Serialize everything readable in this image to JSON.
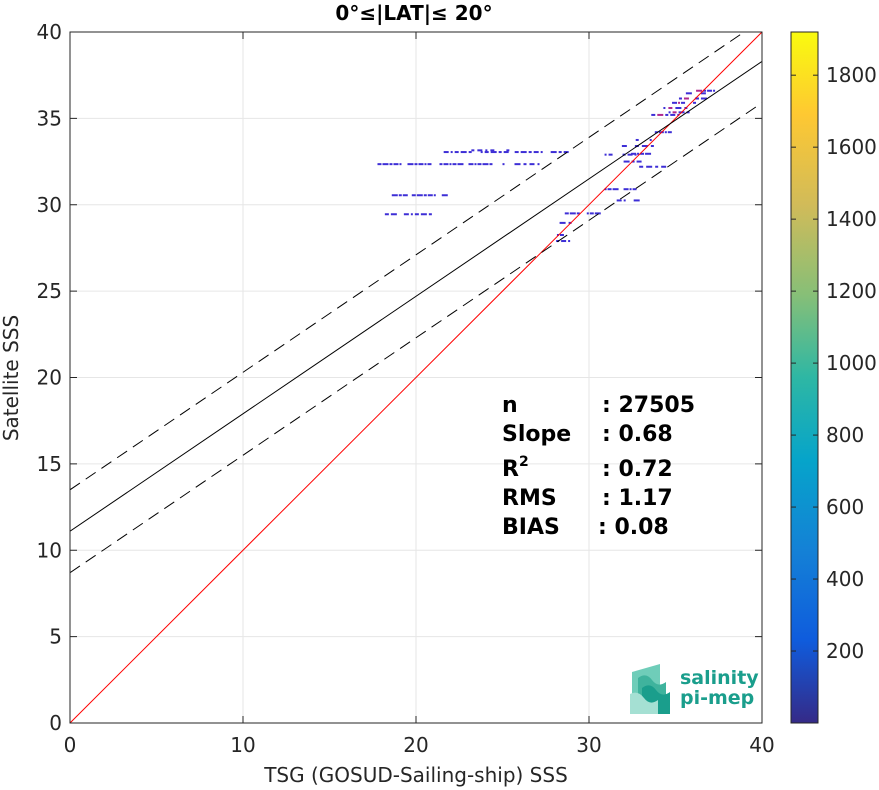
{
  "chart_data": {
    "type": "scatter",
    "title": "0°≤|LAT|≤ 20°",
    "xlabel": "TSG (GOSUD-Sailing-ship) SSS",
    "ylabel": "Satellite SSS",
    "xlim": [
      0,
      40
    ],
    "ylim": [
      0,
      40
    ],
    "xticks": [
      "0",
      "10",
      "20",
      "30",
      "40"
    ],
    "yticks": [
      "0",
      "5",
      "10",
      "15",
      "20",
      "25",
      "30",
      "35",
      "40"
    ],
    "grid": true,
    "colorbar": {
      "range": [
        0,
        1920
      ],
      "ticks": [
        "200",
        "400",
        "600",
        "800",
        "1000",
        "1200",
        "1400",
        "1600",
        "1800"
      ],
      "colormap": "parula"
    },
    "lines": [
      {
        "kind": "identity",
        "color": "#ff0000",
        "slope": 1,
        "intercept": 0
      },
      {
        "kind": "regression",
        "color": "#000000",
        "slope": 0.68,
        "intercept": 11.1
      },
      {
        "kind": "regression-upper",
        "color": "#000000",
        "dashed": true,
        "slope": 0.68,
        "intercept": 13.5
      },
      {
        "kind": "regression-lower",
        "color": "#000000",
        "dashed": true,
        "slope": 0.68,
        "intercept": 8.7
      }
    ],
    "point_bands": [
      {
        "x0": 17.6,
        "x1": 24.4,
        "y": 32.35
      },
      {
        "x0": 21.6,
        "x1": 28.6,
        "y": 33.05
      },
      {
        "x0": 23.2,
        "x1": 25.4,
        "y": 33.15
      },
      {
        "x0": 18.6,
        "x1": 21.7,
        "y": 30.55
      },
      {
        "x0": 18.2,
        "x1": 21.3,
        "y": 29.45
      },
      {
        "x0": 25.0,
        "x1": 27.2,
        "y": 32.35
      },
      {
        "x0": 27.8,
        "x1": 28.6,
        "y": 28.25
      },
      {
        "x0": 28.1,
        "x1": 29.0,
        "y": 27.9
      },
      {
        "x0": 28.3,
        "x1": 29.1,
        "y": 28.95
      },
      {
        "x0": 28.6,
        "x1": 30.4,
        "y": 29.5
      },
      {
        "x0": 30.9,
        "x1": 32.7,
        "y": 32.9
      },
      {
        "x0": 31.9,
        "x1": 33.8,
        "y": 33.4
      },
      {
        "x0": 32.2,
        "x1": 33.5,
        "y": 32.95
      },
      {
        "x0": 32.0,
        "x1": 32.9,
        "y": 32.5
      },
      {
        "x0": 32.9,
        "x1": 34.6,
        "y": 32.2
      },
      {
        "x0": 30.9,
        "x1": 32.6,
        "y": 30.9
      },
      {
        "x0": 31.6,
        "x1": 32.6,
        "y": 30.25
      },
      {
        "x0": 32.7,
        "x1": 33.6,
        "y": 33.75
      },
      {
        "x0": 33.4,
        "x1": 34.6,
        "y": 34.2
      },
      {
        "x0": 33.6,
        "x1": 35.2,
        "y": 35.2
      },
      {
        "x0": 34.3,
        "x1": 35.6,
        "y": 35.6
      },
      {
        "x0": 34.8,
        "x1": 36.2,
        "y": 35.9
      },
      {
        "x0": 35.2,
        "x1": 36.7,
        "y": 36.15
      },
      {
        "x0": 35.6,
        "x1": 36.9,
        "y": 36.45
      },
      {
        "x0": 35.9,
        "x1": 37.3,
        "y": 36.6
      },
      {
        "x0": 34.6,
        "x1": 35.8,
        "y": 35.35
      }
    ],
    "stats": [
      {
        "label": "n",
        "value": ": 27505"
      },
      {
        "label": "Slope",
        "value": ": 0.68"
      },
      {
        "label": "R",
        "sup": "2",
        "value": ": 0.72"
      },
      {
        "label": "RMS",
        "value": ": 1.17"
      },
      {
        "label": "BIAS",
        "value": ": 0.08"
      }
    ]
  },
  "logo": {
    "line1": "salinity",
    "line2": "pi-mep"
  },
  "colors": {
    "identity_line": "#ff0000",
    "regression_line": "#000000",
    "points": "#3d2ed6",
    "dense_points": "#b0288e",
    "grid": "#e6e6e6",
    "logo": "#1a9e8c"
  }
}
